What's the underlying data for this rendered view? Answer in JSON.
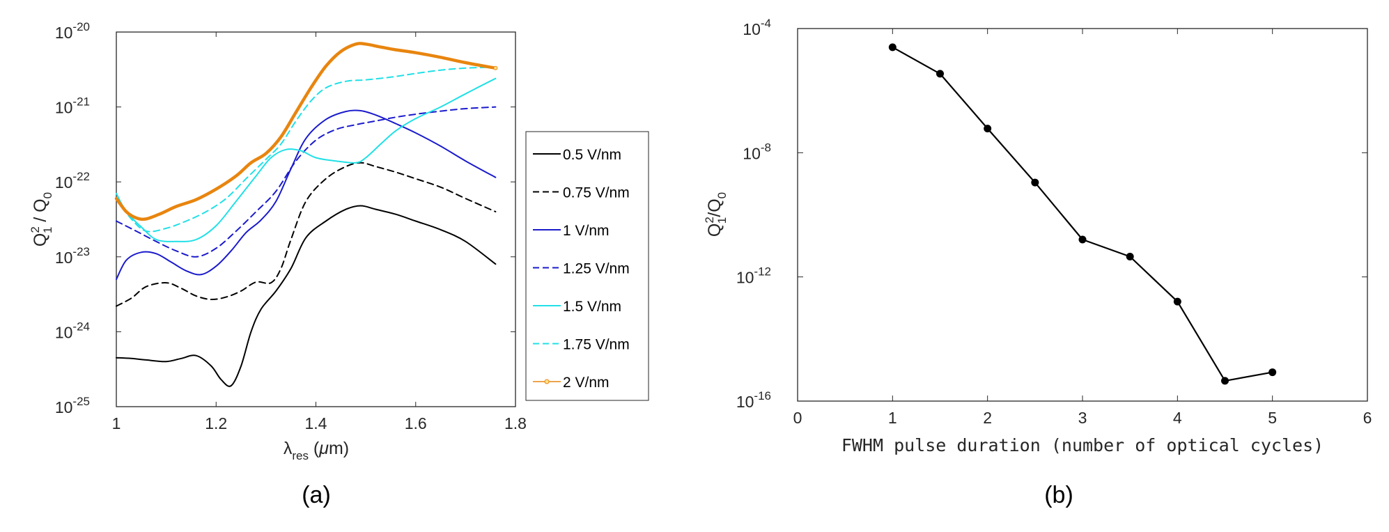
{
  "panel_a": {
    "caption": "(a)",
    "ylabel": {
      "main": "Q",
      "sup": "2",
      "sub": "1",
      "rest": " / Q",
      "sub2": "0"
    },
    "xlabel": {
      "lambda": "λ",
      "sub": "res",
      "rest1": " (",
      "mu": "μ",
      "rest2": "m)"
    },
    "x_ticks": [
      "1",
      "1.2",
      "1.4",
      "1.6",
      "1.8"
    ],
    "y_ticks": [
      {
        "base": "10",
        "exp": "-20"
      },
      {
        "base": "10",
        "exp": "-21"
      },
      {
        "base": "10",
        "exp": "-22"
      },
      {
        "base": "10",
        "exp": "-23"
      },
      {
        "base": "10",
        "exp": "-24"
      },
      {
        "base": "10",
        "exp": "-25"
      }
    ],
    "legend": [
      "0.5 V/nm",
      "0.75 V/nm",
      "1 V/nm",
      "1.25 V/nm",
      "1.5 V/nm",
      "1.75 V/nm",
      "2 V/nm"
    ]
  },
  "panel_b": {
    "caption": "(b)",
    "ylabel": {
      "main": "Q",
      "sup": "2",
      "sub": "1",
      "rest": "/Q",
      "sub2": "0"
    },
    "xlabel": "FWHM pulse duration (number of optical cycles)",
    "x_ticks": [
      "0",
      "1",
      "2",
      "3",
      "4",
      "5",
      "6"
    ],
    "y_ticks": [
      {
        "base": "10",
        "exp": "-4"
      },
      {
        "base": "10",
        "exp": "-8"
      },
      {
        "base": "10",
        "exp": "-12"
      },
      {
        "base": "10",
        "exp": "-16"
      }
    ]
  },
  "chart_data": [
    {
      "type": "line",
      "xlim": [
        1,
        1.8
      ],
      "ylim": [
        1e-25,
        1e-20
      ],
      "yscale": "log",
      "grid": false,
      "legend_position": "right, outside plot",
      "series": [
        {
          "name": "0.5 V/nm",
          "color": "#000000",
          "style": "solid",
          "x": [
            1.0,
            1.03,
            1.06,
            1.1,
            1.13,
            1.16,
            1.19,
            1.21,
            1.23,
            1.25,
            1.27,
            1.29,
            1.32,
            1.35,
            1.38,
            1.42,
            1.46,
            1.49,
            1.52,
            1.56,
            1.6,
            1.65,
            1.7,
            1.76
          ],
          "y": [
            4.5e-25,
            4.4e-25,
            4.2e-25,
            4e-25,
            4.4e-25,
            4.8e-25,
            3.5e-25,
            2.3e-25,
            1.9e-25,
            3.5e-25,
            1e-24,
            2e-24,
            3.5e-24,
            7e-24,
            1.8e-23,
            3e-23,
            4.3e-23,
            4.8e-23,
            4.3e-23,
            3.7e-23,
            3e-23,
            2.3e-23,
            1.6e-23,
            8e-24
          ]
        },
        {
          "name": "0.75 V/nm",
          "color": "#000000",
          "style": "dashed",
          "x": [
            1.0,
            1.03,
            1.06,
            1.1,
            1.13,
            1.16,
            1.19,
            1.22,
            1.25,
            1.28,
            1.31,
            1.33,
            1.35,
            1.38,
            1.42,
            1.46,
            1.49,
            1.52,
            1.56,
            1.6,
            1.65,
            1.7,
            1.76
          ],
          "y": [
            2.2e-24,
            2.8e-24,
            4e-24,
            4.5e-24,
            3.8e-24,
            3e-24,
            2.7e-24,
            2.9e-24,
            3.5e-24,
            4.6e-24,
            4.5e-24,
            7e-24,
            1.7e-23,
            5.5e-23,
            1.1e-22,
            1.6e-22,
            1.8e-22,
            1.6e-22,
            1.35e-22,
            1.1e-22,
            8.5e-23,
            6e-23,
            4e-23
          ]
        },
        {
          "name": "1 V/nm",
          "color": "#1a1acc",
          "style": "solid",
          "x": [
            1.0,
            1.02,
            1.05,
            1.08,
            1.11,
            1.14,
            1.17,
            1.2,
            1.23,
            1.26,
            1.29,
            1.32,
            1.35,
            1.38,
            1.42,
            1.46,
            1.49,
            1.52,
            1.56,
            1.6,
            1.65,
            1.7,
            1.76
          ],
          "y": [
            5e-24,
            9e-24,
            1.15e-23,
            1.1e-23,
            8.5e-24,
            6.5e-24,
            5.8e-24,
            7.5e-24,
            1.2e-23,
            2.1e-23,
            3.1e-23,
            5.5e-23,
            1.5e-22,
            3.8e-22,
            6.8e-22,
            8.7e-22,
            8.9e-22,
            7.8e-22,
            6e-22,
            4.5e-22,
            3e-22,
            1.9e-22,
            1.15e-22
          ]
        },
        {
          "name": "1.25 V/nm",
          "color": "#1a1acc",
          "style": "dashed",
          "x": [
            1.0,
            1.04,
            1.08,
            1.12,
            1.16,
            1.2,
            1.24,
            1.28,
            1.32,
            1.36,
            1.4,
            1.44,
            1.48,
            1.52,
            1.56,
            1.6,
            1.65,
            1.7,
            1.76
          ],
          "y": [
            3e-23,
            2.2e-23,
            1.6e-23,
            1.2e-23,
            1e-23,
            1.3e-23,
            2.2e-23,
            4e-23,
            7.5e-23,
            1.9e-22,
            3.6e-22,
            5e-22,
            5.8e-22,
            6.5e-22,
            7.3e-22,
            8e-22,
            8.8e-22,
            9.5e-22,
            1e-21
          ]
        },
        {
          "name": "1.5 V/nm",
          "color": "#20e0e6",
          "style": "solid",
          "x": [
            1.0,
            1.02,
            1.05,
            1.08,
            1.12,
            1.16,
            1.2,
            1.24,
            1.28,
            1.31,
            1.34,
            1.37,
            1.4,
            1.44,
            1.48,
            1.5,
            1.53,
            1.56,
            1.6,
            1.65,
            1.7,
            1.76
          ],
          "y": [
            7e-23,
            4e-23,
            2.5e-23,
            1.7e-23,
            1.6e-23,
            1.7e-23,
            2.6e-23,
            5.5e-23,
            1.2e-22,
            2.1e-22,
            2.7e-22,
            2.6e-22,
            2.1e-22,
            1.9e-22,
            1.8e-22,
            2.1e-22,
            3.2e-22,
            4.8e-22,
            7e-22,
            1e-21,
            1.5e-21,
            2.4e-21
          ]
        },
        {
          "name": "1.75 V/nm",
          "color": "#20e0e6",
          "style": "dashed",
          "x": [
            1.0,
            1.03,
            1.06,
            1.1,
            1.14,
            1.18,
            1.22,
            1.26,
            1.3,
            1.33,
            1.36,
            1.39,
            1.42,
            1.46,
            1.5,
            1.55,
            1.6,
            1.65,
            1.7,
            1.76
          ],
          "y": [
            6e-23,
            3.2e-23,
            2.2e-23,
            2.4e-23,
            3e-23,
            4e-23,
            6e-23,
            1.1e-22,
            2e-22,
            3.2e-22,
            6.5e-22,
            1.2e-21,
            1.8e-21,
            2.2e-21,
            2.3e-21,
            2.5e-21,
            2.8e-21,
            3.1e-21,
            3.3e-21,
            3.4e-21
          ]
        },
        {
          "name": "2 V/nm",
          "color": "#e8850f",
          "style": "solid",
          "x": [
            1.0,
            1.02,
            1.04,
            1.06,
            1.09,
            1.12,
            1.16,
            1.2,
            1.24,
            1.27,
            1.3,
            1.33,
            1.36,
            1.39,
            1.42,
            1.45,
            1.48,
            1.5,
            1.53,
            1.56,
            1.6,
            1.65,
            1.7,
            1.76
          ],
          "y": [
            6e-23,
            4e-23,
            3.3e-23,
            3.2e-23,
            3.8e-23,
            4.7e-23,
            5.8e-23,
            8e-23,
            1.2e-22,
            1.8e-22,
            2.4e-22,
            4e-22,
            8.5e-22,
            1.8e-21,
            3.5e-21,
            5.5e-21,
            6.9e-21,
            6.9e-21,
            6.3e-21,
            5.8e-21,
            5.3e-21,
            4.6e-21,
            3.9e-21,
            3.3e-21
          ]
        }
      ]
    },
    {
      "type": "line",
      "xlim": [
        0,
        6
      ],
      "ylim": [
        1e-16,
        0.0001
      ],
      "yscale": "log",
      "grid": false,
      "markers": true,
      "series": [
        {
          "color": "#000000",
          "x": [
            1,
            1.5,
            2,
            2.5,
            3,
            3.5,
            4,
            4.5,
            5
          ],
          "y": [
            2.5e-05,
            3.5e-06,
            6e-08,
            1.1e-09,
            1.6e-11,
            4.5e-12,
            1.6e-13,
            4.5e-16,
            8.5e-16
          ]
        }
      ]
    }
  ]
}
